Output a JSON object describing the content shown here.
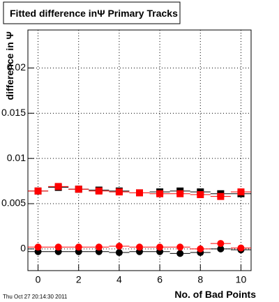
{
  "chart_data": {
    "type": "scatter",
    "title": "Fitted difference inΨ  Primary Tracks",
    "x_label": "No. of Bad Points",
    "y_label": "difference in Ψ",
    "timestamp": "Thu Oct 27 20:14:30 2011",
    "x": [
      0,
      1,
      2,
      3,
      4,
      5,
      6,
      7,
      8,
      9,
      10
    ],
    "x_error": 0.5,
    "series": [
      {
        "color": "#000000",
        "marker": "square",
        "values": [
          0.0064,
          0.0068,
          0.0066,
          0.0065,
          0.0064,
          0.0062,
          0.0063,
          0.0064,
          0.0063,
          0.0061,
          0.0061
        ]
      },
      {
        "color": "#ff0000",
        "marker": "square",
        "values": [
          0.0064,
          0.0069,
          0.0066,
          0.0064,
          0.0063,
          0.0062,
          0.0061,
          0.0061,
          0.006,
          0.0058,
          0.0063
        ]
      },
      {
        "color": "#000000",
        "marker": "circle",
        "values": [
          -0.0003,
          -0.0003,
          -0.0003,
          -0.0003,
          -0.0004,
          -0.0003,
          -0.0003,
          -0.0005,
          -0.0004,
          0.0,
          -0.0001
        ]
      },
      {
        "color": "#ff0000",
        "marker": "circle",
        "values": [
          0.0002,
          0.0002,
          0.0002,
          0.0002,
          0.0003,
          0.0002,
          0.0002,
          0.0002,
          0.0,
          0.0006,
          0.0001
        ]
      }
    ],
    "xlim": [
      -0.5,
      10.5
    ],
    "xticks": [
      0,
      2,
      4,
      6,
      8,
      10
    ],
    "ylim": [
      -0.0024,
      0.0242
    ],
    "yticks": [
      0,
      0.005,
      0.01,
      0.015,
      0.02
    ],
    "grid": true
  }
}
